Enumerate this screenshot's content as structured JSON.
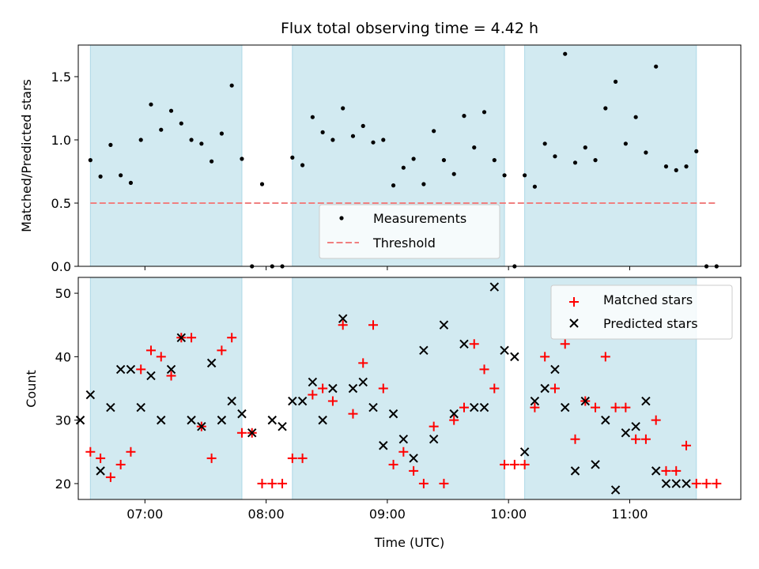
{
  "chart_data": [
    {
      "type": "scatter",
      "title": "Flux total observing time = 4.42 h",
      "ylabel": "Matched/Predicted stars",
      "xlabel": "",
      "ylim": [
        0,
        1.75
      ],
      "xlim": [
        "06:27",
        "11:55"
      ],
      "yticks": [
        0.0,
        0.5,
        1.0,
        1.5
      ],
      "ytick_labels": [
        "0.0",
        "0.5",
        "1.0",
        "1.5"
      ],
      "shaded_intervals": [
        [
          "06:33",
          "07:48"
        ],
        [
          "08:13",
          "09:58"
        ],
        [
          "10:08",
          "11:33"
        ]
      ],
      "shade_color": "#add8e6",
      "legend_position": "lower-center",
      "threshold": {
        "name": "Threshold",
        "value": 0.5,
        "x_range": [
          "06:33",
          "11:43"
        ],
        "color": "#f08080",
        "style": "dashed"
      },
      "series": [
        {
          "name": "Measurements",
          "color": "#000000",
          "marker": "dot",
          "x": [
            "06:33",
            "06:38",
            "06:43",
            "06:48",
            "06:53",
            "06:58",
            "07:03",
            "07:08",
            "07:13",
            "07:18",
            "07:23",
            "07:28",
            "07:33",
            "07:38",
            "07:43",
            "07:48",
            "07:53",
            "07:58",
            "08:03",
            "08:08",
            "08:13",
            "08:18",
            "08:23",
            "08:28",
            "08:33",
            "08:38",
            "08:43",
            "08:48",
            "08:53",
            "08:58",
            "09:03",
            "09:08",
            "09:13",
            "09:18",
            "09:23",
            "09:28",
            "09:33",
            "09:38",
            "09:43",
            "09:48",
            "09:53",
            "09:58",
            "10:03",
            "10:08",
            "10:13",
            "10:18",
            "10:23",
            "10:28",
            "10:33",
            "10:38",
            "10:43",
            "10:48",
            "10:53",
            "10:58",
            "11:03",
            "11:08",
            "11:13",
            "11:18",
            "11:23",
            "11:28",
            "11:33",
            "11:38",
            "11:43"
          ],
          "y": [
            0.84,
            0.71,
            0.96,
            0.72,
            0.66,
            1.0,
            1.28,
            1.08,
            1.23,
            1.13,
            1.0,
            0.97,
            0.83,
            1.05,
            1.43,
            0.85,
            0.0,
            0.65,
            0.0,
            0.0,
            0.86,
            0.8,
            1.18,
            1.06,
            1.0,
            1.25,
            1.03,
            1.11,
            0.98,
            1.0,
            0.64,
            0.78,
            0.85,
            0.65,
            1.07,
            0.84,
            0.73,
            1.19,
            0.94,
            1.22,
            0.84,
            0.72,
            0.0,
            0.72,
            0.63,
            0.97,
            0.87,
            1.68,
            0.82,
            0.94,
            0.84,
            1.25,
            1.46,
            0.97,
            1.18,
            0.9,
            1.58,
            0.79,
            0.76,
            0.79,
            0.91,
            0.0,
            0.0
          ]
        }
      ]
    },
    {
      "type": "scatter",
      "title": "",
      "ylabel": "Count",
      "xlabel": "Time (UTC)",
      "ylim": [
        17.5,
        52.5
      ],
      "xlim": [
        "06:27",
        "11:55"
      ],
      "yticks": [
        20,
        30,
        40,
        50
      ],
      "ytick_labels": [
        "20",
        "30",
        "40",
        "50"
      ],
      "xticks": [
        "07:00",
        "08:00",
        "09:00",
        "10:00",
        "11:00"
      ],
      "shaded_intervals": [
        [
          "06:33",
          "07:48"
        ],
        [
          "08:13",
          "09:58"
        ],
        [
          "10:08",
          "11:33"
        ]
      ],
      "shade_color": "#add8e6",
      "legend_position": "top-right",
      "series": [
        {
          "name": "Matched stars",
          "color": "#ff0000",
          "marker": "plus",
          "x": [
            "06:33",
            "06:38",
            "06:43",
            "06:48",
            "06:53",
            "06:58",
            "07:03",
            "07:08",
            "07:13",
            "07:18",
            "07:23",
            "07:28",
            "07:33",
            "07:38",
            "07:43",
            "07:48",
            "07:53",
            "07:58",
            "08:03",
            "08:08",
            "08:13",
            "08:18",
            "08:23",
            "08:28",
            "08:33",
            "08:38",
            "08:43",
            "08:48",
            "08:53",
            "08:58",
            "09:03",
            "09:08",
            "09:13",
            "09:18",
            "09:23",
            "09:28",
            "09:33",
            "09:38",
            "09:43",
            "09:48",
            "09:53",
            "09:58",
            "10:03",
            "10:08",
            "10:13",
            "10:18",
            "10:23",
            "10:28",
            "10:33",
            "10:38",
            "10:43",
            "10:48",
            "10:53",
            "10:58",
            "11:03",
            "11:08",
            "11:13",
            "11:18",
            "11:23",
            "11:28",
            "11:33",
            "11:38",
            "11:43"
          ],
          "y": [
            25,
            24,
            21,
            23,
            25,
            38,
            41,
            40,
            37,
            43,
            43,
            29,
            24,
            41,
            43,
            28,
            28,
            20,
            20,
            20,
            24,
            24,
            34,
            35,
            33,
            45,
            31,
            39,
            45,
            35,
            23,
            25,
            22,
            20,
            29,
            20,
            30,
            32,
            42,
            38,
            35,
            23,
            23,
            23,
            32,
            40,
            35,
            42,
            27,
            33,
            32,
            40,
            32,
            32,
            27,
            27,
            30,
            22,
            22,
            26,
            20,
            20,
            20
          ]
        },
        {
          "name": "Predicted stars",
          "color": "#000000",
          "marker": "x",
          "x": [
            "06:28",
            "06:33",
            "06:38",
            "06:43",
            "06:48",
            "06:53",
            "06:58",
            "07:03",
            "07:08",
            "07:13",
            "07:18",
            "07:23",
            "07:28",
            "07:33",
            "07:38",
            "07:43",
            "07:48",
            "07:53",
            "08:03",
            "08:08",
            "08:13",
            "08:18",
            "08:23",
            "08:28",
            "08:33",
            "08:38",
            "08:43",
            "08:48",
            "08:53",
            "08:58",
            "09:03",
            "09:08",
            "09:13",
            "09:18",
            "09:23",
            "09:28",
            "09:33",
            "09:38",
            "09:43",
            "09:48",
            "09:53",
            "09:58",
            "10:03",
            "10:08",
            "10:13",
            "10:18",
            "10:23",
            "10:28",
            "10:33",
            "10:38",
            "10:43",
            "10:48",
            "10:53",
            "10:58",
            "11:03",
            "11:08",
            "11:13",
            "11:18",
            "11:23",
            "11:28"
          ],
          "y": [
            30,
            34,
            22,
            32,
            38,
            38,
            32,
            37,
            30,
            38,
            43,
            30,
            29,
            39,
            30,
            33,
            31,
            28,
            30,
            29,
            33,
            33,
            36,
            30,
            35,
            46,
            35,
            36,
            32,
            26,
            31,
            27,
            24,
            41,
            27,
            45,
            31,
            42,
            32,
            32,
            51,
            41,
            40,
            25,
            33,
            35,
            38,
            32,
            22,
            33,
            23,
            30,
            19,
            28,
            29,
            33,
            22,
            20,
            20,
            20
          ]
        }
      ]
    }
  ]
}
